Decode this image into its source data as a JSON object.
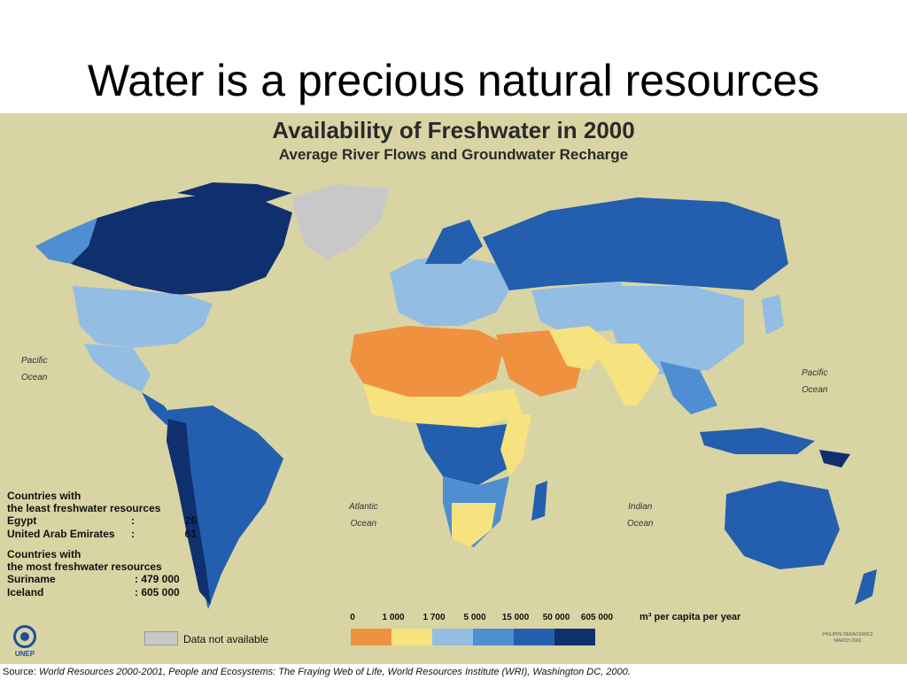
{
  "slide": {
    "title": "Water is a precious natural resources"
  },
  "map": {
    "title": "Availability of Freshwater in 2000",
    "subtitle": "Average River Flows and Groundwater Recharge",
    "ocean_labels": [
      {
        "id": "pacific-west",
        "line1": "Pacific",
        "line2": "Ocean"
      },
      {
        "id": "pacific-east",
        "line1": "Pacific",
        "line2": "Ocean"
      },
      {
        "id": "atlantic",
        "line1": "Atlantic",
        "line2": "Ocean"
      },
      {
        "id": "indian",
        "line1": "Indian",
        "line2": "Ocean"
      }
    ]
  },
  "facts": {
    "least_heading_1": "Countries with",
    "least_heading_2": "the least freshwater resources",
    "least": [
      {
        "name": "Egypt",
        "sep": ":",
        "value": "26"
      },
      {
        "name": "United Arab Emirates",
        "sep": ":",
        "value": "61"
      }
    ],
    "most_heading_1": "Countries with",
    "most_heading_2": "the most freshwater resources",
    "most": [
      {
        "name": "Suriname",
        "value": ": 479 000"
      },
      {
        "name": "Iceland",
        "value": ": 605 000"
      }
    ]
  },
  "legend": {
    "ticks": [
      "0",
      "1 000",
      "1 700",
      "5 000",
      "15 000",
      "50 000",
      "605 000"
    ],
    "unit": "m³ per capita per year",
    "colors": [
      "#f0913f",
      "#f6e27e",
      "#93bde3",
      "#4f8fd1",
      "#235fae",
      "#0f2f6e"
    ],
    "na_label": "Data not available",
    "na_color": "#c8c8c8"
  },
  "logo": {
    "text": "UNEP"
  },
  "credit": {
    "line1": "PHILIPPE REKACEWICZ",
    "line2": "MARCH 2002"
  },
  "source": {
    "prefix": "Source:",
    "text": " World Resources 2000-2001, People and Ecosystems: The Fraying Web of Life, World Resources Institute (WRI), Washington DC, 2000."
  }
}
